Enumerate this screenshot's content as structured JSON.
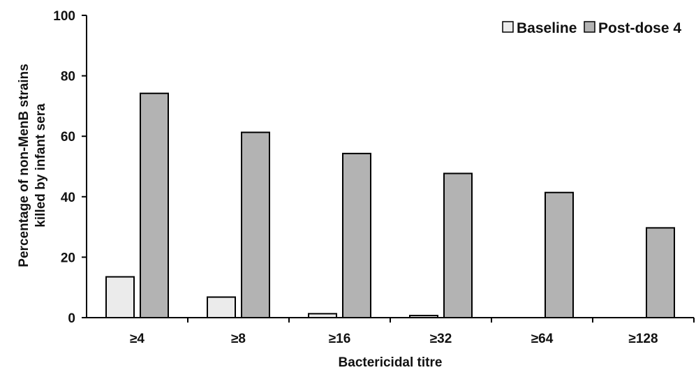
{
  "chart_data": {
    "type": "bar",
    "categories": [
      "≥4",
      "≥8",
      "≥16",
      "≥32",
      "≥64",
      "≥128"
    ],
    "series": [
      {
        "name": "Baseline",
        "values": [
          13.5,
          6.8,
          1.3,
          0.7,
          0,
          0
        ],
        "color": "#ebebeb"
      },
      {
        "name": "Post-dose 4",
        "values": [
          74.2,
          61.3,
          54.3,
          47.7,
          41.4,
          29.7
        ],
        "color": "#b3b3b3"
      }
    ],
    "title": "",
    "xlabel": "Bactericidal titre",
    "ylabel_lines": [
      "Percentage of non-MenB strains",
      "killed by infant sera"
    ],
    "ylim": [
      0,
      100
    ],
    "yticks": [
      0,
      20,
      40,
      60,
      80,
      100
    ],
    "grid": false,
    "legend_position": "top-right",
    "bar_stroke_color": "#000000"
  }
}
